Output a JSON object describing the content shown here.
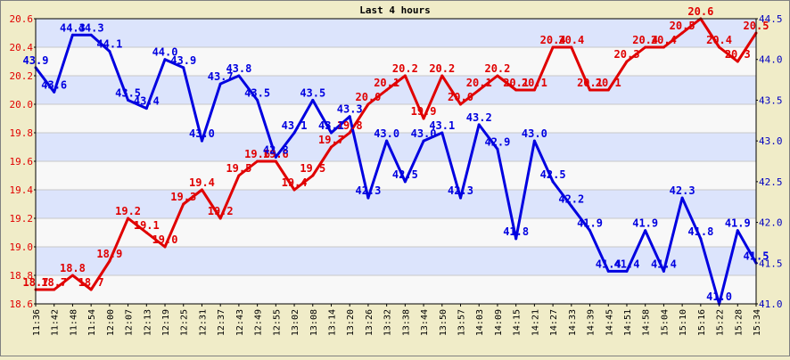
{
  "chart_data": {
    "type": "line",
    "title": "Last 4 hours",
    "grid": true,
    "x": [
      "11:36",
      "11:42",
      "11:48",
      "11:54",
      "12:00",
      "12:07",
      "12:13",
      "12:19",
      "12:25",
      "12:31",
      "12:37",
      "12:43",
      "12:49",
      "12:55",
      "13:02",
      "13:08",
      "13:14",
      "13:20",
      "13:26",
      "13:32",
      "13:38",
      "13:44",
      "13:50",
      "13:57",
      "14:03",
      "14:09",
      "14:15",
      "14:21",
      "14:27",
      "14:33",
      "14:39",
      "14:45",
      "14:51",
      "14:58",
      "15:04",
      "15:10",
      "15:16",
      "15:22",
      "15:28",
      "15:34"
    ],
    "left_axis": {
      "min": 18.6,
      "max": 20.6,
      "ticks": [
        "18.6",
        "18.8",
        "19.0",
        "19.2",
        "19.4",
        "19.6",
        "19.8",
        "20.0",
        "20.2",
        "20.4",
        "20.6"
      ],
      "color": "#e00000"
    },
    "right_axis": {
      "min": 41.0,
      "max": 44.5,
      "ticks": [
        "41.0",
        "41.5",
        "42.0",
        "42.5",
        "43.0",
        "43.5",
        "44.0",
        "44.5"
      ],
      "color": "#0000c0"
    },
    "series": [
      {
        "axis": "left",
        "color": "#e00000",
        "values": [
          18.7,
          18.7,
          18.8,
          18.7,
          18.9,
          19.2,
          19.1,
          19.0,
          19.3,
          19.4,
          19.2,
          19.5,
          19.6,
          19.6,
          19.4,
          19.5,
          19.7,
          19.8,
          20.0,
          20.1,
          20.2,
          19.9,
          20.2,
          20.0,
          20.1,
          20.2,
          20.1,
          20.1,
          20.4,
          20.4,
          20.1,
          20.1,
          20.3,
          20.4,
          20.4,
          20.5,
          20.6,
          20.4,
          20.3,
          20.5
        ],
        "labels": [
          "18.7",
          "18.7",
          "18.8",
          "18.7",
          "18.9",
          "19.2",
          "19.1",
          "19.0",
          "19.3",
          "19.4",
          "19.2",
          "19.5",
          "19.6",
          "19.6",
          "19.4",
          "19.5",
          "19.7",
          "19.8",
          "20.0",
          "20.1",
          "20.2",
          "19.9",
          "20.2",
          "20.0",
          "20.1",
          "20.2",
          "20.1",
          "20.1",
          "20.4",
          "20.4",
          "20.1",
          "20.1",
          "20.3",
          "20.4",
          "20.4",
          "20.5",
          "20.6",
          "20.4",
          "20.3",
          "20.5"
        ]
      },
      {
        "axis": "right",
        "color": "#0000e0",
        "values": [
          43.9,
          43.6,
          44.3,
          44.3,
          44.1,
          43.5,
          43.4,
          44.0,
          43.9,
          43.0,
          43.7,
          43.8,
          43.5,
          42.8,
          43.1,
          43.5,
          43.1,
          43.3,
          42.3,
          43.0,
          42.5,
          43.0,
          43.1,
          42.3,
          43.2,
          42.9,
          41.8,
          43.0,
          42.5,
          42.2,
          41.9,
          41.4,
          41.4,
          41.9,
          41.4,
          42.3,
          41.8,
          41.0,
          41.9,
          41.5
        ],
        "labels": [
          "43.9",
          "43.6",
          "44.3",
          "44.3",
          "44.1",
          "43.5",
          "43.4",
          "44.0",
          "43.9",
          "43.0",
          "43.7",
          "43.8",
          "43.5",
          "42.8",
          "43.1",
          "43.5",
          "43.1",
          "43.3",
          "42.3",
          "43.0",
          "42.5",
          "43.0",
          "43.1",
          "42.3",
          "43.2",
          "42.9",
          "41.8",
          "43.0",
          "42.5",
          "42.2",
          "41.9",
          "41.4",
          "41.4",
          "41.9",
          "41.4",
          "42.3",
          "41.8",
          "41.0",
          "41.9",
          "41.5"
        ]
      }
    ]
  }
}
